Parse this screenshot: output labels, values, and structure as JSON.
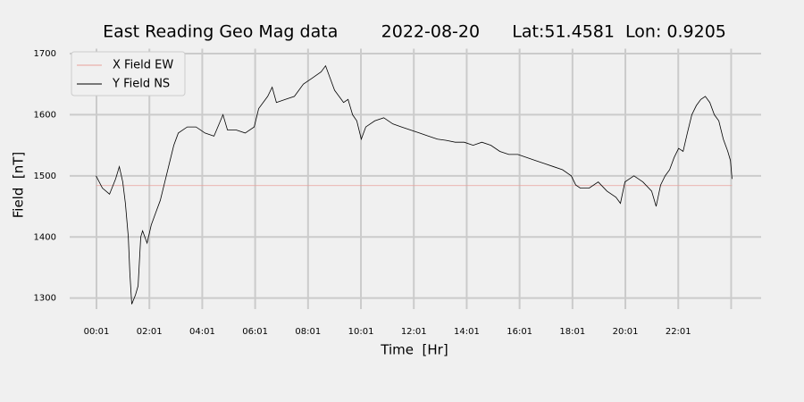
{
  "chart_data": {
    "type": "line",
    "title": "East Reading Geo Mag data        2022-08-20      Lat:51.4581  Lon: 0.9205",
    "x_label": "Time  [Hr]",
    "y_label": "Field  [nT]",
    "xlim": [
      -0.997,
      25.15
    ],
    "ylim": [
      1282,
      1708
    ],
    "xticks": [
      {
        "value": 0.0167,
        "label": "00:01"
      },
      {
        "value": 2.0167,
        "label": "02:01"
      },
      {
        "value": 4.0167,
        "label": "04:01"
      },
      {
        "value": 6.0167,
        "label": "06:01"
      },
      {
        "value": 8.0167,
        "label": "08:01"
      },
      {
        "value": 10.0167,
        "label": "10:01"
      },
      {
        "value": 12.0167,
        "label": "12:01"
      },
      {
        "value": 14.0167,
        "label": "14:01"
      },
      {
        "value": 16.0167,
        "label": "16:01"
      },
      {
        "value": 18.0167,
        "label": "18:01"
      },
      {
        "value": 20.0167,
        "label": "20:01"
      },
      {
        "value": 22.0167,
        "label": "22:01"
      },
      {
        "value": 24.0167,
        "label": null
      }
    ],
    "yticks": [
      1300,
      1400,
      1500,
      1600,
      1700
    ],
    "grid": true,
    "legend": "upper left",
    "series": [
      {
        "name": "X Field EW",
        "color": "#e8a09a",
        "x": [
          0,
          24.05
        ],
        "values": [
          1484,
          1484
        ]
      },
      {
        "name": "Y Field NS",
        "color": "#000000",
        "x": [
          0,
          0.24,
          0.51,
          0.74,
          0.88,
          1.01,
          1.11,
          1.22,
          1.28,
          1.35,
          1.49,
          1.59,
          1.69,
          1.76,
          1.93,
          2.09,
          2.26,
          2.43,
          2.6,
          2.77,
          2.94,
          3.11,
          3.45,
          3.78,
          4.12,
          4.46,
          4.8,
          4.97,
          5.3,
          5.64,
          5.98,
          6.15,
          6.49,
          6.66,
          6.82,
          7.16,
          7.5,
          7.84,
          8.18,
          8.51,
          8.68,
          8.85,
          9.02,
          9.19,
          9.36,
          9.53,
          9.7,
          9.86,
          10.03,
          10.2,
          10.54,
          10.88,
          11.22,
          11.55,
          11.89,
          12.23,
          12.57,
          12.91,
          13.24,
          13.58,
          13.92,
          14.26,
          14.59,
          14.93,
          15.27,
          15.61,
          15.95,
          16.28,
          16.62,
          16.96,
          17.3,
          17.64,
          17.97,
          18.14,
          18.31,
          18.65,
          18.99,
          19.32,
          19.66,
          19.83,
          20.0,
          20.34,
          20.68,
          21.01,
          21.18,
          21.35,
          21.52,
          21.69,
          21.86,
          22.03,
          22.2,
          22.36,
          22.53,
          22.7,
          22.87,
          23.04,
          23.21,
          23.38,
          23.55,
          23.72,
          23.89,
          23.99,
          24.05
        ],
        "values": [
          1500,
          1480,
          1470,
          1495,
          1515,
          1490,
          1455,
          1400,
          1340,
          1290,
          1305,
          1320,
          1400,
          1410,
          1390,
          1420,
          1440,
          1460,
          1490,
          1520,
          1550,
          1570,
          1580,
          1580,
          1570,
          1565,
          1600,
          1575,
          1575,
          1570,
          1580,
          1610,
          1630,
          1645,
          1620,
          1625,
          1630,
          1650,
          1660,
          1670,
          1680,
          1660,
          1640,
          1630,
          1620,
          1625,
          1600,
          1590,
          1560,
          1580,
          1590,
          1595,
          1585,
          1580,
          1575,
          1570,
          1565,
          1560,
          1558,
          1555,
          1555,
          1550,
          1555,
          1550,
          1540,
          1535,
          1535,
          1530,
          1525,
          1520,
          1515,
          1510,
          1500,
          1485,
          1480,
          1480,
          1490,
          1475,
          1465,
          1455,
          1490,
          1500,
          1490,
          1475,
          1450,
          1485,
          1500,
          1510,
          1530,
          1545,
          1540,
          1570,
          1600,
          1615,
          1625,
          1630,
          1620,
          1600,
          1590,
          1560,
          1540,
          1525,
          1495
        ]
      }
    ]
  }
}
